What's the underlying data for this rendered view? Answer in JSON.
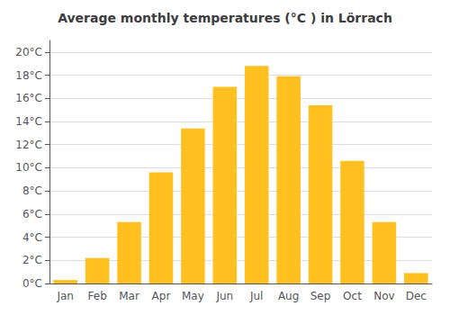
{
  "chart_data": {
    "type": "bar",
    "title": "Average monthly temperatures (°C ) in Lörrach",
    "categories": [
      "Jan",
      "Feb",
      "Mar",
      "Apr",
      "May",
      "Jun",
      "Jul",
      "Aug",
      "Sep",
      "Oct",
      "Nov",
      "Dec"
    ],
    "values": [
      0.3,
      2.2,
      5.3,
      9.6,
      13.4,
      17.0,
      18.8,
      17.9,
      15.4,
      10.6,
      5.3,
      0.9
    ],
    "color": "#FFC020",
    "ylim": [
      0,
      21
    ],
    "yticks": [
      {
        "value": 0,
        "label": "0°C"
      },
      {
        "value": 2,
        "label": "2°C"
      },
      {
        "value": 4,
        "label": "4°C"
      },
      {
        "value": 6,
        "label": "6°C"
      },
      {
        "value": 8,
        "label": "8°C"
      },
      {
        "value": 10,
        "label": "10°C"
      },
      {
        "value": 12,
        "label": "12°C"
      },
      {
        "value": 14,
        "label": "14°C"
      },
      {
        "value": 16,
        "label": "16°C"
      },
      {
        "value": 18,
        "label": "18°C"
      },
      {
        "value": 20,
        "label": "20°C"
      }
    ],
    "grid": true
  }
}
